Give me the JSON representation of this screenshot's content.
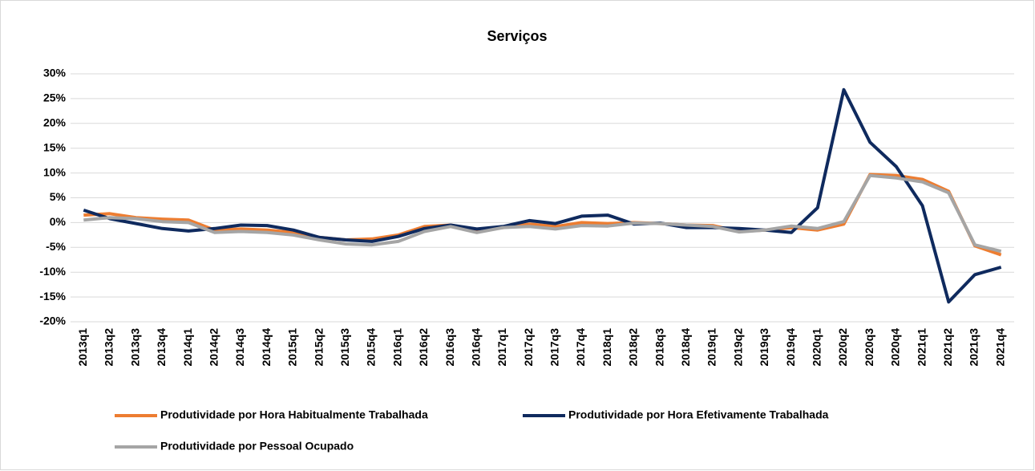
{
  "chart_data": {
    "type": "line",
    "title": "Serviços",
    "categories": [
      "2013q1",
      "2013q2",
      "2013q3",
      "2013q4",
      "2014q1",
      "2014q2",
      "2014q3",
      "2014q4",
      "2015q1",
      "2015q2",
      "2015q3",
      "2015q4",
      "2016q1",
      "2016q2",
      "2016q3",
      "2016q4",
      "2017q1",
      "2017q2",
      "2017q3",
      "2017q4",
      "2018q1",
      "2018q2",
      "2018q3",
      "2018q4",
      "2019q1",
      "2019q2",
      "2019q3",
      "2019q4",
      "2020q1",
      "2020q2",
      "2020q3",
      "2020q4",
      "2021q1",
      "2021q2",
      "2021q3",
      "2021q4"
    ],
    "series": [
      {
        "name": "Produtividade por Hora Habitualmente Trabalhada",
        "color": "#ed7d31",
        "values": [
          1.5,
          1.8,
          1.0,
          0.7,
          0.5,
          -1.5,
          -1.3,
          -1.5,
          -2.0,
          -3.0,
          -3.5,
          -3.3,
          -2.5,
          -0.8,
          -0.5,
          -1.5,
          -1.0,
          -0.3,
          -0.8,
          0.0,
          -0.2,
          0.0,
          -0.2,
          -0.5,
          -0.6,
          -1.8,
          -1.5,
          -1.0,
          -1.5,
          -0.3,
          9.7,
          9.5,
          8.7,
          6.3,
          -4.7,
          -6.5
        ]
      },
      {
        "name": "Produtividade por Hora Efetivamente Trabalhada",
        "color": "#0f2a5e",
        "values": [
          2.5,
          0.8,
          -0.2,
          -1.2,
          -1.7,
          -1.2,
          -0.5,
          -0.6,
          -1.5,
          -3.0,
          -3.5,
          -3.8,
          -2.8,
          -1.2,
          -0.5,
          -1.3,
          -0.8,
          0.4,
          -0.2,
          1.3,
          1.5,
          -0.3,
          -0.1,
          -1.0,
          -1.0,
          -1.2,
          -1.5,
          -2.0,
          3.0,
          26.8,
          16.2,
          11.3,
          3.4,
          -16.0,
          -10.5,
          -9.0
        ]
      },
      {
        "name": "Produtividade por Pessoal Ocupado",
        "color": "#a5a5a5",
        "values": [
          0.5,
          1.0,
          0.8,
          0.2,
          0.0,
          -2.0,
          -1.8,
          -2.0,
          -2.5,
          -3.5,
          -4.3,
          -4.5,
          -3.8,
          -1.8,
          -0.8,
          -2.0,
          -1.0,
          -0.8,
          -1.3,
          -0.6,
          -0.7,
          -0.1,
          -0.2,
          -0.5,
          -0.8,
          -1.9,
          -1.5,
          -0.7,
          -1.2,
          0.2,
          9.5,
          9.0,
          8.2,
          6.0,
          -4.5,
          -5.8
        ]
      }
    ],
    "ylim": [
      -20,
      30
    ],
    "yticks": [
      {
        "value": -20,
        "label": "-20%"
      },
      {
        "value": -15,
        "label": "-15%"
      },
      {
        "value": -10,
        "label": "-10%"
      },
      {
        "value": -5,
        "label": "-5%"
      },
      {
        "value": 0,
        "label": "0%"
      },
      {
        "value": 5,
        "label": "5%"
      },
      {
        "value": 10,
        "label": "10%"
      },
      {
        "value": 15,
        "label": "15%"
      },
      {
        "value": 20,
        "label": "20%"
      },
      {
        "value": 25,
        "label": "25%"
      },
      {
        "value": 30,
        "label": "30%"
      }
    ],
    "grid": true
  }
}
